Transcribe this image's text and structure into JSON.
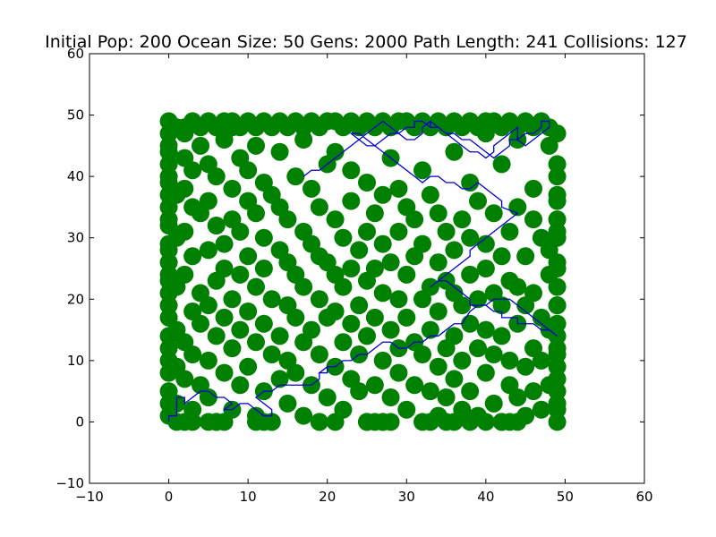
{
  "chart_data": {
    "type": "scatter",
    "title": "Initial Pop: 200 Ocean Size: 50 Gens: 2000 Path Length: 241 Collisions: 127",
    "xlabel": "",
    "ylabel": "",
    "xlim": [
      -10,
      60
    ],
    "ylim": [
      -10,
      60
    ],
    "xticks": [
      -10,
      0,
      10,
      20,
      30,
      40,
      50,
      60
    ],
    "yticks": [
      -10,
      0,
      10,
      20,
      30,
      40,
      50,
      60
    ],
    "xtick_labels": [
      "−10",
      "0",
      "10",
      "20",
      "30",
      "40",
      "50",
      "60"
    ],
    "ytick_labels": [
      "−10",
      "0",
      "10",
      "20",
      "30",
      "40",
      "50",
      "60"
    ],
    "grid": false,
    "colors": {
      "obstacles": "#008000",
      "path": "#0000cc",
      "axes": "#000000",
      "background": "#ffffff"
    },
    "series": [
      {
        "name": "obstacles",
        "marker": "circle",
        "note": "dense field of obstacle points covering the 0-49 ocean grid",
        "x": [
          0,
          0,
          0,
          0,
          0,
          0,
          0,
          0,
          0,
          1,
          1,
          1,
          1,
          1,
          1,
          2,
          2,
          2,
          2,
          2,
          2,
          2,
          3,
          3,
          3,
          3,
          3,
          3,
          4,
          4,
          4,
          4,
          4,
          5,
          5,
          5,
          5,
          5,
          5,
          6,
          6,
          6,
          6,
          6,
          7,
          7,
          7,
          7,
          7,
          8,
          8,
          8,
          8,
          8,
          8,
          9,
          9,
          9,
          9,
          9,
          10,
          10,
          10,
          10,
          10,
          11,
          11,
          11,
          11,
          11,
          12,
          12,
          12,
          12,
          12,
          13,
          13,
          13,
          13,
          14,
          14,
          14,
          14,
          14,
          15,
          15,
          15,
          15,
          15,
          16,
          16,
          16,
          16,
          17,
          17,
          17,
          17,
          17,
          18,
          18,
          18,
          18,
          19,
          19,
          19,
          19,
          19,
          20,
          20,
          20,
          20,
          21,
          21,
          21,
          21,
          21,
          22,
          22,
          22,
          22,
          23,
          23,
          23,
          23,
          23,
          24,
          24,
          24,
          24,
          25,
          25,
          25,
          25,
          25,
          26,
          26,
          26,
          26,
          27,
          27,
          27,
          27,
          27,
          28,
          28,
          28,
          28,
          29,
          29,
          29,
          29,
          29,
          30,
          30,
          30,
          30,
          31,
          31,
          31,
          31,
          32,
          32,
          32,
          32,
          32,
          33,
          33,
          33,
          33,
          34,
          34,
          34,
          34,
          34,
          35,
          35,
          35,
          35,
          36,
          36,
          36,
          36,
          36,
          37,
          37,
          37,
          37,
          38,
          38,
          38,
          38,
          38,
          39,
          39,
          39,
          39,
          40,
          40,
          40,
          40,
          40,
          41,
          41,
          41,
          41,
          42,
          42,
          42,
          42,
          42,
          43,
          43,
          43,
          43,
          44,
          44,
          44,
          44,
          44,
          45,
          45,
          45,
          45,
          46,
          46,
          46,
          46,
          46,
          47,
          47,
          47,
          47,
          48,
          48,
          48,
          48,
          48,
          49,
          49,
          49,
          49,
          49,
          49,
          49,
          49,
          49,
          49,
          49,
          49,
          1,
          2,
          3,
          5,
          6,
          7,
          11,
          12,
          13,
          19,
          21,
          25,
          26,
          27,
          28,
          33,
          35,
          36,
          38,
          40,
          42,
          43,
          44,
          1,
          2,
          3,
          4,
          5,
          6,
          7,
          8,
          9,
          10,
          11,
          12,
          13,
          14,
          15,
          16,
          17,
          18,
          19,
          20,
          21,
          22,
          23,
          24,
          25,
          26,
          27,
          28,
          29,
          30,
          31,
          32,
          33,
          34,
          35,
          36,
          37,
          38,
          39,
          40,
          41,
          42,
          43,
          44,
          45,
          46,
          47,
          48,
          0,
          0,
          0,
          0,
          0,
          0,
          0,
          0,
          0,
          0,
          0,
          0,
          0,
          0,
          0,
          0,
          0,
          49,
          49,
          49,
          49,
          49,
          49,
          49,
          49,
          49,
          49,
          49
        ],
        "y": [
          1,
          5,
          12,
          19,
          26,
          33,
          39,
          44,
          49,
          3,
          9,
          15,
          22,
          30,
          37,
          7,
          13,
          24,
          31,
          38,
          43,
          47,
          2,
          11,
          18,
          27,
          35,
          41,
          6,
          16,
          21,
          34,
          45,
          4,
          10,
          19,
          28,
          36,
          42,
          0,
          14,
          23,
          32,
          40,
          8,
          17,
          25,
          29,
          46,
          2,
          12,
          20,
          33,
          38,
          48,
          6,
          15,
          24,
          31,
          43,
          9,
          18,
          27,
          36,
          41,
          1,
          13,
          22,
          34,
          45,
          5,
          16,
          25,
          30,
          39,
          0,
          11,
          20,
          37,
          7,
          14,
          28,
          35,
          44,
          3,
          10,
          19,
          26,
          33,
          8,
          17,
          24,
          40,
          1,
          13,
          22,
          31,
          46,
          6,
          15,
          29,
          38,
          0,
          11,
          20,
          27,
          35,
          4,
          17,
          26,
          42,
          9,
          18,
          24,
          33,
          44,
          2,
          13,
          22,
          30,
          7,
          16,
          25,
          36,
          41,
          5,
          11,
          19,
          28,
          0,
          14,
          23,
          31,
          39,
          6,
          17,
          25,
          34,
          0,
          10,
          21,
          29,
          37,
          4,
          15,
          26,
          43,
          8,
          12,
          20,
          31,
          38,
          2,
          17,
          24,
          35,
          6,
          13,
          27,
          33,
          0,
          11,
          20,
          29,
          41,
          5,
          15,
          22,
          37,
          1,
          9,
          18,
          26,
          34,
          4,
          12,
          23,
          31,
          7,
          14,
          21,
          28,
          44,
          2,
          10,
          19,
          33,
          5,
          16,
          24,
          30,
          39,
          1,
          12,
          20,
          36,
          8,
          15,
          25,
          29,
          47,
          3,
          11,
          21,
          34,
          0,
          14,
          19,
          27,
          42,
          6,
          10,
          23,
          31,
          4,
          16,
          22,
          35,
          46,
          1,
          9,
          19,
          27,
          5,
          12,
          21,
          33,
          38,
          2,
          10,
          17,
          30,
          6,
          15,
          24,
          28,
          45,
          0,
          3,
          7,
          9,
          12,
          16,
          19,
          22,
          26,
          30,
          33,
          37,
          0,
          0,
          0,
          0,
          0,
          0,
          0,
          0,
          0,
          0,
          0,
          0,
          0,
          0,
          0,
          0,
          0,
          0,
          0,
          0,
          0,
          0,
          0,
          48,
          48,
          49,
          48,
          49,
          48,
          49,
          49,
          48,
          49,
          48,
          49,
          48,
          49,
          48,
          49,
          48,
          49,
          48,
          49,
          49,
          48,
          49,
          48,
          49,
          48,
          49,
          48,
          49,
          49,
          48,
          49,
          48,
          49,
          48,
          49,
          48,
          49,
          48,
          49,
          49,
          48,
          49,
          48,
          49,
          48,
          49,
          48,
          3,
          8,
          14,
          17,
          21,
          24,
          28,
          32,
          35,
          37,
          40,
          42,
          45,
          47,
          10,
          23,
          29,
          2,
          5,
          11,
          14,
          19,
          25,
          31,
          36,
          40,
          42,
          47
        ]
      },
      {
        "name": "path",
        "marker": "line",
        "x": [
          0,
          0,
          1,
          1,
          2,
          2,
          3,
          4,
          5,
          6,
          7,
          8,
          7,
          8,
          9,
          10,
          11,
          12,
          13,
          13,
          12,
          11,
          12,
          13,
          14,
          15,
          16,
          17,
          18,
          19,
          19,
          20,
          20,
          19,
          20,
          21,
          22,
          23,
          24,
          25,
          26,
          27,
          28,
          29,
          30,
          31,
          32,
          33,
          34,
          35,
          36,
          37,
          38,
          39,
          40,
          41,
          42,
          43,
          44,
          45,
          46,
          47,
          48,
          49,
          49,
          48,
          47,
          46,
          45,
          44,
          44,
          43,
          42,
          42,
          41,
          40,
          39,
          38,
          38,
          37,
          36,
          35,
          34,
          33,
          33,
          34,
          35,
          36,
          37,
          38,
          38,
          39,
          40,
          41,
          42,
          43,
          44,
          42,
          42,
          41,
          40,
          39,
          38,
          37,
          36,
          35,
          34,
          33,
          32,
          31,
          30,
          29,
          28,
          27,
          26,
          25,
          24,
          23,
          24,
          25,
          26,
          27,
          28,
          29,
          30,
          31,
          31,
          32,
          33,
          33,
          34,
          35,
          36,
          37,
          38,
          39,
          40,
          41,
          41,
          42,
          43,
          44,
          44,
          45,
          46,
          47,
          48,
          48,
          47,
          47,
          46,
          45,
          44,
          43,
          43,
          42,
          41,
          41,
          40,
          39,
          38,
          37,
          36,
          35,
          34,
          33,
          33,
          32,
          32,
          31,
          30,
          29,
          28,
          27,
          27,
          26,
          25,
          24,
          23,
          22,
          21,
          20,
          19,
          18,
          17,
          17
        ],
        "y": [
          0,
          1,
          1,
          4,
          4,
          3,
          4,
          5,
          5,
          4,
          4,
          3,
          2,
          2,
          3,
          3,
          2,
          1,
          1,
          2,
          3,
          4,
          5,
          5,
          6,
          6,
          6,
          6,
          6,
          7,
          8,
          9,
          8,
          8,
          9,
          9,
          10,
          10,
          11,
          11,
          12,
          13,
          13,
          12,
          12,
          13,
          13,
          14,
          14,
          15,
          16,
          16,
          18,
          19,
          19,
          20,
          20,
          20,
          19,
          18,
          17,
          16,
          15,
          14,
          14,
          15,
          15,
          16,
          16,
          16,
          17,
          17,
          17,
          18,
          18,
          19,
          19,
          19,
          20,
          21,
          22,
          23,
          23,
          22,
          22,
          23,
          24,
          25,
          26,
          27,
          28,
          29,
          30,
          31,
          32,
          33,
          34,
          35,
          36,
          37,
          38,
          39,
          38,
          38,
          39,
          39,
          40,
          40,
          39,
          40,
          41,
          42,
          43,
          44,
          45,
          46,
          47,
          47,
          46,
          45,
          45,
          46,
          47,
          47,
          48,
          48,
          49,
          49,
          48,
          49,
          48,
          47,
          46,
          45,
          44,
          44,
          43,
          44,
          45,
          46,
          47,
          48,
          46,
          45,
          46,
          47,
          48,
          49,
          49,
          48,
          47,
          47,
          46,
          46,
          45,
          44,
          43,
          43,
          44,
          45,
          46,
          46,
          47,
          47,
          48,
          48,
          49,
          48,
          47,
          46,
          46,
          47,
          48,
          49,
          49,
          48,
          47,
          46,
          45,
          44,
          43,
          42,
          41,
          41,
          40,
          40
        ]
      }
    ]
  }
}
